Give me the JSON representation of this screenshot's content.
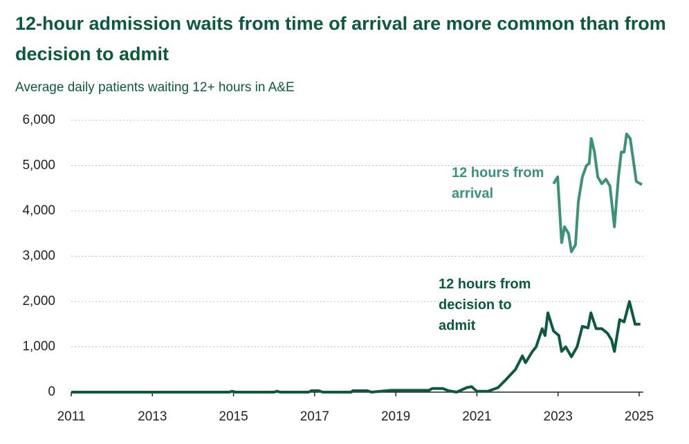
{
  "chart_data": {
    "type": "line",
    "title": "12-hour admission waits from time of arrival are more common than from decision to admit",
    "subtitle": "Average daily patients waiting 12+ hours in A&E",
    "xlim": [
      2011,
      2025.1
    ],
    "xticks": [
      2011,
      2013,
      2015,
      2017,
      2019,
      2021,
      2023,
      2025
    ],
    "ylim": [
      0,
      6000
    ],
    "yticks": [
      0,
      {
        "value": 1000,
        "label": "1,000"
      },
      {
        "value": 2000,
        "label": "2,000"
      },
      {
        "value": 3000,
        "label": "3,000"
      },
      {
        "value": 4000,
        "label": "4,000"
      },
      {
        "value": 5000,
        "label": "5,000"
      },
      {
        "value": 6000,
        "label": "6,000"
      }
    ],
    "series": [
      {
        "name": "12 hours from arrival",
        "color": "#3a9278",
        "x": [
          2022.89,
          2022.99,
          2023.09,
          2023.16,
          2023.26,
          2023.33,
          2023.43,
          2023.5,
          2023.6,
          2023.7,
          2023.77,
          2023.82,
          2023.9,
          2023.98,
          2024.08,
          2024.18,
          2024.28,
          2024.39,
          2024.49,
          2024.56,
          2024.63,
          2024.69,
          2024.78,
          2024.86,
          2024.93,
          2025.07
        ],
        "values": [
          4600,
          4750,
          3300,
          3650,
          3500,
          3100,
          3250,
          4200,
          4750,
          5000,
          5050,
          5600,
          5300,
          4750,
          4600,
          4700,
          4550,
          3650,
          4750,
          5300,
          5300,
          5700,
          5600,
          5100,
          4650,
          4580
        ]
      },
      {
        "name": "12 hours from decision to admit",
        "color": "#0b5a3a",
        "x": [
          2011,
          2014.9,
          2014.96,
          2015.05,
          2016.0,
          2016.07,
          2016.15,
          2016.85,
          2016.92,
          2017.1,
          2017.2,
          2017.9,
          2017.94,
          2018.3,
          2018.4,
          2018.88,
          2019.82,
          2019.9,
          2020.16,
          2020.3,
          2020.5,
          2020.75,
          2020.87,
          2021.0,
          2021.27,
          2021.52,
          2021.69,
          2021.95,
          2022.12,
          2022.2,
          2022.37,
          2022.46,
          2022.61,
          2022.68,
          2022.75,
          2022.89,
          2023.02,
          2023.09,
          2023.19,
          2023.33,
          2023.47,
          2023.6,
          2023.74,
          2023.81,
          2023.94,
          2024.08,
          2024.22,
          2024.32,
          2024.39,
          2024.52,
          2024.63,
          2024.76,
          2024.9,
          2025.03
        ],
        "values": [
          0,
          0,
          20,
          0,
          0,
          20,
          0,
          0,
          30,
          30,
          0,
          0,
          30,
          30,
          0,
          40,
          40,
          80,
          80,
          30,
          0,
          100,
          120,
          20,
          20,
          100,
          250,
          500,
          800,
          650,
          900,
          1000,
          1400,
          1250,
          1750,
          1350,
          1250,
          900,
          1000,
          780,
          1000,
          1450,
          1420,
          1750,
          1400,
          1400,
          1300,
          1150,
          900,
          1600,
          1550,
          2000,
          1500,
          1500
        ]
      }
    ]
  }
}
